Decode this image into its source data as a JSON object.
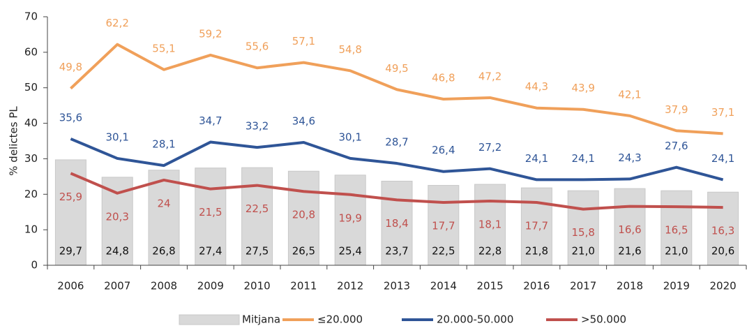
{
  "chart_data": {
    "type": "combo",
    "y_label": "% delictes PL",
    "categories": [
      "2006",
      "2007",
      "2008",
      "2009",
      "2010",
      "2011",
      "2012",
      "2013",
      "2014",
      "2015",
      "2016",
      "2017",
      "2018",
      "2019",
      "2020"
    ],
    "ylim": [
      0,
      70
    ],
    "yticks": [
      0,
      10,
      20,
      30,
      40,
      50,
      60,
      70
    ],
    "legend": "bottom",
    "series": [
      {
        "name": "Mitjana",
        "type": "bar",
        "color": "#d9d9d9",
        "values": [
          29.7,
          24.8,
          26.8,
          27.4,
          27.5,
          26.5,
          25.4,
          23.7,
          22.5,
          22.8,
          21.8,
          21.0,
          21.6,
          21.0,
          20.6
        ],
        "value_labels": [
          "29,7",
          "24,8",
          "26,8",
          "27,4",
          "27,5",
          "26,5",
          "25,4",
          "23,7",
          "22,5",
          "22,8",
          "21,8",
          "21,0",
          "21,6",
          "21,0",
          "20,6"
        ]
      },
      {
        "name": "≤20.000",
        "type": "line",
        "color": "#f0a05a",
        "values": [
          49.8,
          62.2,
          55.1,
          59.2,
          55.6,
          57.1,
          54.8,
          49.5,
          46.8,
          47.2,
          44.3,
          43.9,
          42.1,
          37.9,
          37.1
        ],
        "value_labels": [
          "49,8",
          "62,2",
          "55,1",
          "59,2",
          "55,6",
          "57,1",
          "54,8",
          "49,5",
          "46,8",
          "47,2",
          "44,3",
          "43,9",
          "42,1",
          "37,9",
          "37,1"
        ]
      },
      {
        "name": "20.000-50.000",
        "type": "line",
        "color": "#2f5597",
        "values": [
          35.6,
          30.1,
          28.1,
          34.7,
          33.2,
          34.6,
          30.1,
          28.7,
          26.4,
          27.2,
          24.1,
          24.1,
          24.3,
          27.6,
          24.1
        ],
        "value_labels": [
          "35,6",
          "30,1",
          "28,1",
          "34,7",
          "33,2",
          "34,6",
          "30,1",
          "28,7",
          "26,4",
          "27,2",
          "24,1",
          "24,1",
          "24,3",
          "27,6",
          "24,1"
        ]
      },
      {
        "name": ">50.000",
        "type": "line",
        "color": "#c0504d",
        "values": [
          25.9,
          20.3,
          24,
          21.5,
          22.5,
          20.8,
          19.9,
          18.4,
          17.7,
          18.1,
          17.7,
          15.8,
          16.6,
          16.5,
          16.3
        ],
        "value_labels": [
          "25,9",
          "20,3",
          "24",
          "21,5",
          "22,5",
          "20,8",
          "19,9",
          "18,4",
          "17,7",
          "18,1",
          "17,7",
          "15,8",
          "16,6",
          "16,5",
          "16,3"
        ]
      }
    ]
  }
}
